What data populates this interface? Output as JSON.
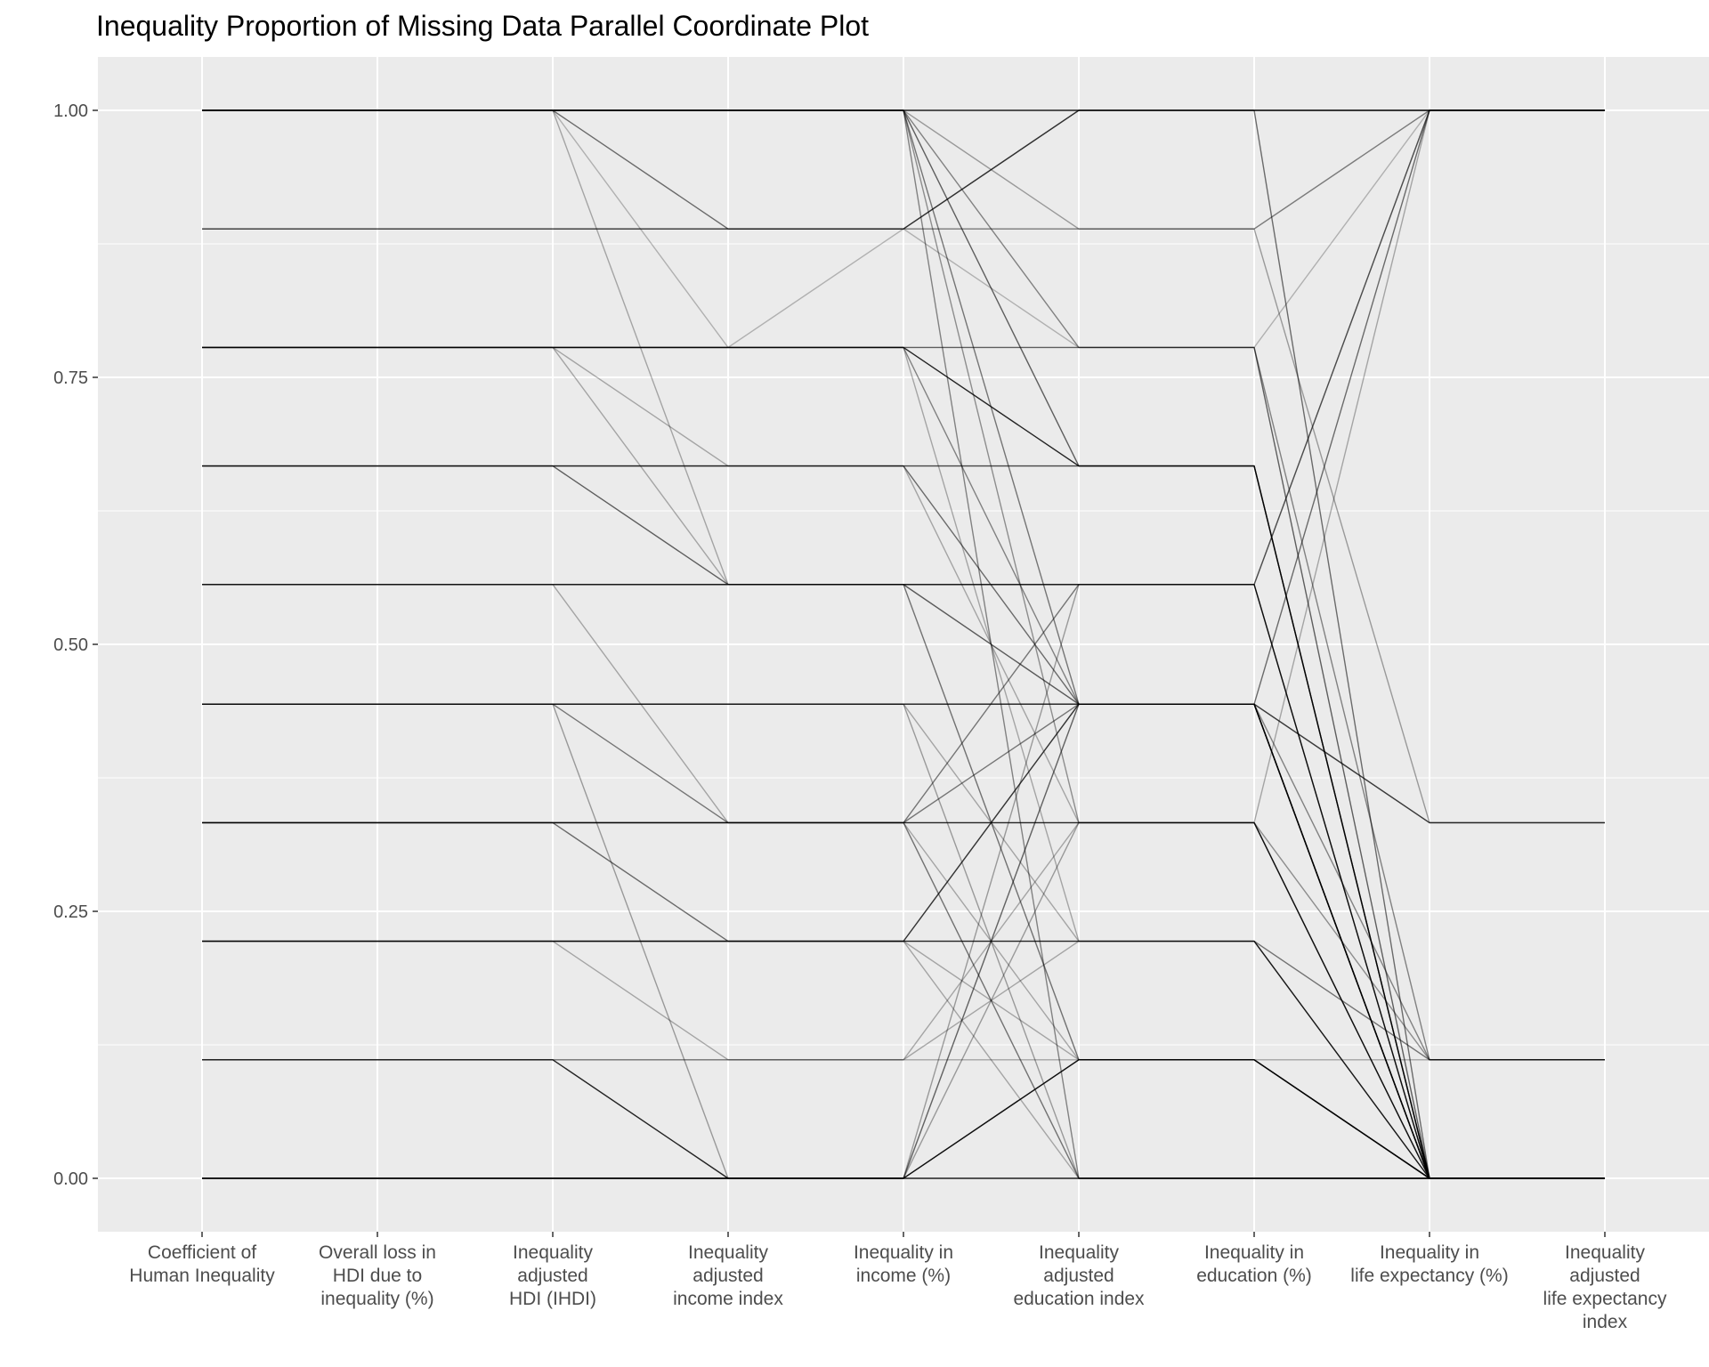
{
  "chart_data": {
    "type": "parallel-coordinates",
    "title": "Inequality Proportion of Missing Data Parallel Coordinate Plot",
    "xlabel": "",
    "ylabel": "",
    "ylim": [
      -0.05,
      1.05
    ],
    "grid": true,
    "legend": "none",
    "y_ticks": [
      {
        "value": 0.0,
        "label": "0.00"
      },
      {
        "value": 0.25,
        "label": "0.25"
      },
      {
        "value": 0.5,
        "label": "0.50"
      },
      {
        "value": 0.75,
        "label": "0.75"
      },
      {
        "value": 1.0,
        "label": "1.00"
      }
    ],
    "dimensions": [
      {
        "key": "coef",
        "label_lines": [
          "Coefficient of",
          "Human Inequality"
        ]
      },
      {
        "key": "loss",
        "label_lines": [
          "Overall loss in",
          "HDI due to",
          "inequality (%)"
        ]
      },
      {
        "key": "ihdi",
        "label_lines": [
          "Inequality",
          "adjusted",
          "HDI (IHDI)"
        ]
      },
      {
        "key": "income_idx",
        "label_lines": [
          "Inequality",
          "adjusted",
          "income index"
        ]
      },
      {
        "key": "income_pct",
        "label_lines": [
          "Inequality in",
          "income (%)"
        ]
      },
      {
        "key": "edu_idx",
        "label_lines": [
          "Inequality",
          "adjusted",
          "education index"
        ]
      },
      {
        "key": "edu_pct",
        "label_lines": [
          "Inequality in",
          "education (%)"
        ]
      },
      {
        "key": "life_pct",
        "label_lines": [
          "Inequality in",
          "life expectancy (%)"
        ]
      },
      {
        "key": "life_idx",
        "label_lines": [
          "Inequality",
          "adjusted",
          "life expectancy",
          "index"
        ]
      }
    ],
    "line_color": "#000000",
    "lines": [
      {
        "values": [
          1.0,
          1.0,
          1.0,
          1.0,
          1.0,
          1.0,
          1.0,
          1.0,
          1.0
        ],
        "opacity": 0.9
      },
      {
        "values": [
          1.0,
          1.0,
          1.0,
          0.889,
          0.889,
          1.0,
          1.0,
          1.0,
          1.0
        ],
        "opacity": 0.55
      },
      {
        "values": [
          1.0,
          1.0,
          1.0,
          0.778,
          0.889,
          0.889,
          0.889,
          1.0,
          1.0
        ],
        "opacity": 0.25
      },
      {
        "values": [
          1.0,
          1.0,
          1.0,
          0.556,
          0.556,
          0.444,
          0.444,
          0.333,
          0.333
        ],
        "opacity": 0.3
      },
      {
        "values": [
          1.0,
          1.0,
          1.0,
          1.0,
          1.0,
          0.778,
          0.778,
          0.111,
          0.111
        ],
        "opacity": 0.45
      },
      {
        "values": [
          1.0,
          1.0,
          1.0,
          1.0,
          1.0,
          0.667,
          0.667,
          0.0,
          0.0
        ],
        "opacity": 0.6
      },
      {
        "values": [
          1.0,
          1.0,
          1.0,
          1.0,
          1.0,
          0.444,
          0.444,
          0.0,
          0.0
        ],
        "opacity": 0.5
      },
      {
        "values": [
          1.0,
          1.0,
          1.0,
          1.0,
          1.0,
          0.333,
          0.333,
          0.111,
          0.111
        ],
        "opacity": 0.4
      },
      {
        "values": [
          1.0,
          1.0,
          1.0,
          1.0,
          1.0,
          0.0,
          0.0,
          0.0,
          0.0
        ],
        "opacity": 0.45
      },
      {
        "values": [
          1.0,
          1.0,
          1.0,
          1.0,
          1.0,
          0.889,
          0.889,
          0.333,
          0.333
        ],
        "opacity": 0.35
      },
      {
        "values": [
          0.889,
          0.889,
          0.889,
          0.889,
          0.889,
          0.889,
          0.889,
          1.0,
          1.0
        ],
        "opacity": 0.3
      },
      {
        "values": [
          0.889,
          0.889,
          0.889,
          0.889,
          0.889,
          1.0,
          1.0,
          0.0,
          0.0
        ],
        "opacity": 0.55
      },
      {
        "values": [
          0.889,
          0.889,
          0.889,
          0.889,
          0.889,
          0.778,
          0.778,
          1.0,
          1.0
        ],
        "opacity": 0.25
      },
      {
        "values": [
          0.778,
          0.778,
          0.778,
          0.778,
          0.778,
          0.667,
          0.667,
          0.0,
          0.0
        ],
        "opacity": 0.85
      },
      {
        "values": [
          0.778,
          0.778,
          0.778,
          0.778,
          0.778,
          0.778,
          0.778,
          0.0,
          0.0
        ],
        "opacity": 0.6
      },
      {
        "values": [
          0.778,
          0.778,
          0.778,
          0.778,
          0.778,
          0.444,
          0.444,
          0.111,
          0.111
        ],
        "opacity": 0.45
      },
      {
        "values": [
          0.778,
          0.778,
          0.778,
          0.667,
          0.667,
          0.333,
          0.333,
          0.0,
          0.0
        ],
        "opacity": 0.3
      },
      {
        "values": [
          0.778,
          0.778,
          0.778,
          0.556,
          0.556,
          0.111,
          0.111,
          0.0,
          0.0
        ],
        "opacity": 0.3
      },
      {
        "values": [
          0.778,
          0.778,
          0.778,
          0.778,
          0.778,
          0.222,
          0.222,
          0.111,
          0.111
        ],
        "opacity": 0.3
      },
      {
        "values": [
          0.667,
          0.667,
          0.667,
          0.556,
          0.556,
          0.556,
          0.556,
          0.0,
          0.0
        ],
        "opacity": 0.6
      },
      {
        "values": [
          0.667,
          0.667,
          0.667,
          0.667,
          0.667,
          0.444,
          0.444,
          0.0,
          0.0
        ],
        "opacity": 0.55
      },
      {
        "values": [
          0.667,
          0.667,
          0.667,
          0.667,
          0.667,
          0.667,
          0.667,
          0.0,
          0.0
        ],
        "opacity": 0.7
      },
      {
        "values": [
          0.556,
          0.556,
          0.556,
          0.556,
          0.556,
          0.556,
          0.556,
          0.0,
          0.0
        ],
        "opacity": 0.85
      },
      {
        "values": [
          0.556,
          0.556,
          0.556,
          0.556,
          0.556,
          0.444,
          0.444,
          0.333,
          0.333
        ],
        "opacity": 0.45
      },
      {
        "values": [
          0.556,
          0.556,
          0.556,
          0.333,
          0.333,
          0.0,
          0.0,
          0.0,
          0.0
        ],
        "opacity": 0.3
      },
      {
        "values": [
          0.556,
          0.556,
          0.556,
          0.556,
          0.556,
          0.111,
          0.111,
          0.0,
          0.0
        ],
        "opacity": 0.3
      },
      {
        "values": [
          0.444,
          0.444,
          0.444,
          0.444,
          0.444,
          0.444,
          0.444,
          0.0,
          0.0
        ],
        "opacity": 0.9
      },
      {
        "values": [
          0.444,
          0.444,
          0.444,
          0.333,
          0.333,
          0.556,
          0.556,
          1.0,
          1.0
        ],
        "opacity": 0.5
      },
      {
        "values": [
          0.444,
          0.444,
          0.444,
          0.0,
          0.0,
          0.444,
          0.444,
          0.333,
          0.333
        ],
        "opacity": 0.35
      },
      {
        "values": [
          0.444,
          0.444,
          0.444,
          0.444,
          0.444,
          0.0,
          0.0,
          0.0,
          0.0
        ],
        "opacity": 0.35
      },
      {
        "values": [
          0.444,
          0.444,
          0.444,
          0.444,
          0.444,
          0.222,
          0.222,
          0.111,
          0.111
        ],
        "opacity": 0.3
      },
      {
        "values": [
          0.333,
          0.333,
          0.333,
          0.333,
          0.333,
          0.333,
          0.333,
          0.0,
          0.0
        ],
        "opacity": 0.85
      },
      {
        "values": [
          0.333,
          0.333,
          0.333,
          0.222,
          0.222,
          0.444,
          0.444,
          1.0,
          1.0
        ],
        "opacity": 0.55
      },
      {
        "values": [
          0.333,
          0.333,
          0.333,
          0.333,
          0.333,
          0.444,
          0.444,
          0.0,
          0.0
        ],
        "opacity": 0.5
      },
      {
        "values": [
          0.333,
          0.333,
          0.333,
          0.333,
          0.333,
          0.0,
          0.0,
          0.0,
          0.0
        ],
        "opacity": 0.3
      },
      {
        "values": [
          0.333,
          0.333,
          0.333,
          0.333,
          0.333,
          0.111,
          0.111,
          0.0,
          0.0
        ],
        "opacity": 0.3
      },
      {
        "values": [
          0.222,
          0.222,
          0.222,
          0.222,
          0.222,
          0.222,
          0.222,
          0.0,
          0.0
        ],
        "opacity": 0.85
      },
      {
        "values": [
          0.222,
          0.222,
          0.222,
          0.222,
          0.222,
          0.444,
          0.444,
          0.0,
          0.0
        ],
        "opacity": 0.5
      },
      {
        "values": [
          0.222,
          0.222,
          0.222,
          0.111,
          0.111,
          0.333,
          0.333,
          1.0,
          1.0
        ],
        "opacity": 0.3
      },
      {
        "values": [
          0.222,
          0.222,
          0.222,
          0.222,
          0.222,
          0.0,
          0.0,
          0.0,
          0.0
        ],
        "opacity": 0.3
      },
      {
        "values": [
          0.222,
          0.222,
          0.222,
          0.222,
          0.222,
          0.111,
          0.111,
          0.0,
          0.0
        ],
        "opacity": 0.3
      },
      {
        "values": [
          0.111,
          0.111,
          0.111,
          0.0,
          0.0,
          0.111,
          0.111,
          0.0,
          0.0
        ],
        "opacity": 0.85
      },
      {
        "values": [
          0.111,
          0.111,
          0.111,
          0.111,
          0.111,
          0.111,
          0.111,
          0.111,
          0.111
        ],
        "opacity": 0.3
      },
      {
        "values": [
          0.111,
          0.111,
          0.111,
          0.111,
          0.111,
          0.222,
          0.222,
          0.0,
          0.0
        ],
        "opacity": 0.3
      },
      {
        "values": [
          0.0,
          0.0,
          0.0,
          0.0,
          0.0,
          0.0,
          0.0,
          0.0,
          0.0
        ],
        "opacity": 0.9
      },
      {
        "values": [
          0.0,
          0.0,
          0.0,
          0.0,
          0.0,
          0.111,
          0.111,
          0.0,
          0.0
        ],
        "opacity": 0.6
      },
      {
        "values": [
          0.0,
          0.0,
          0.0,
          0.0,
          0.0,
          0.556,
          0.556,
          1.0,
          1.0
        ],
        "opacity": 0.35
      },
      {
        "values": [
          0.0,
          0.0,
          0.0,
          0.0,
          0.0,
          0.444,
          0.444,
          0.0,
          0.0
        ],
        "opacity": 0.35
      },
      {
        "values": [
          0.0,
          0.0,
          0.0,
          0.0,
          0.0,
          0.333,
          0.333,
          0.0,
          0.0
        ],
        "opacity": 0.35
      }
    ]
  }
}
